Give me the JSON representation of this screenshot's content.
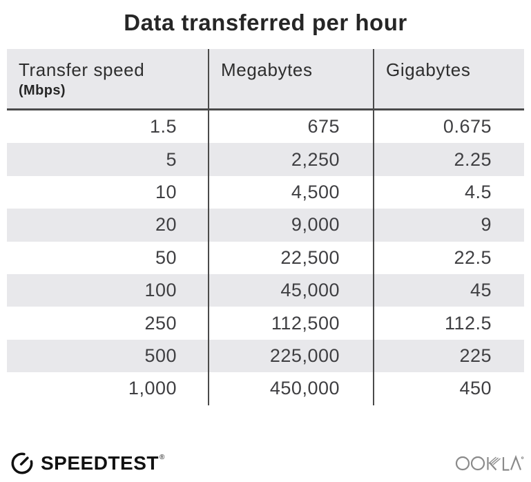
{
  "title": "Data transferred per hour",
  "table": {
    "columns": [
      {
        "label": "Transfer speed",
        "sublabel": "(Mbps)"
      },
      {
        "label": "Megabytes",
        "sublabel": ""
      },
      {
        "label": "Gigabytes",
        "sublabel": ""
      }
    ],
    "rows": [
      [
        "1.5",
        "675",
        "0.675"
      ],
      [
        "5",
        "2,250",
        "2.25"
      ],
      [
        "10",
        "4,500",
        "4.5"
      ],
      [
        "20",
        "9,000",
        "9"
      ],
      [
        "50",
        "22,500",
        "22.5"
      ],
      [
        "100",
        "45,000",
        "45"
      ],
      [
        "250",
        "112,500",
        "112.5"
      ],
      [
        "500",
        "225,000",
        "225"
      ],
      [
        "1,000",
        "450,000",
        "450"
      ]
    ]
  },
  "footer": {
    "speedtest_label": "SPEEDTEST",
    "speedtest_trademark": "®",
    "ookla_label": "OOKLA",
    "icons": {
      "gauge": "speedtest-gauge-icon",
      "ookla": "ookla-wordmark-icon"
    }
  },
  "colors": {
    "header_background": "#e8e8eb",
    "row_alt_background": "#e8e8eb",
    "divider": "#4a4a4a",
    "title_text": "#262626",
    "cell_text": "#3f3f42",
    "speedtest_black": "#111111",
    "ookla_gray": "#8a8a8a"
  },
  "chart_data": {
    "type": "table",
    "title": "Data transferred per hour",
    "columns": [
      "Transfer speed (Mbps)",
      "Megabytes",
      "Gigabytes"
    ],
    "rows": [
      [
        1.5,
        675,
        0.675
      ],
      [
        5,
        2250,
        2.25
      ],
      [
        10,
        4500,
        4.5
      ],
      [
        20,
        9000,
        9
      ],
      [
        50,
        22500,
        22.5
      ],
      [
        100,
        45000,
        45
      ],
      [
        250,
        112500,
        112.5
      ],
      [
        500,
        225000,
        225
      ],
      [
        1000,
        450000,
        450
      ]
    ]
  }
}
